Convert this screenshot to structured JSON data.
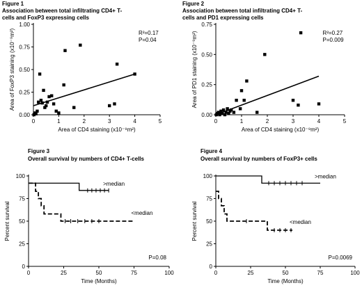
{
  "chart_data": [
    {
      "type": "scatter",
      "figure_label": "Figure 1",
      "title": "Association between total infiltrating CD4+ T-cells and FoxP3 expressing cells",
      "title_lines": [
        "Association between total infiltrating CD4+ T-",
        "cells and FoxP3 expressing cells"
      ],
      "xlabel": "Area of CD4 staining (x10⁻⁹m²)",
      "ylabel": "Area of FoxP3 staining (x10⁻⁹m²)",
      "xlim": [
        0,
        5
      ],
      "ylim": [
        0,
        1.0
      ],
      "xticks": [
        0,
        1,
        2,
        3,
        4,
        5
      ],
      "yticks": [
        0.0,
        0.25,
        0.5,
        0.75,
        1.0
      ],
      "ytick_labels": [
        "0.00",
        "0.25",
        "0.50",
        "0.75",
        "1.00"
      ],
      "grid": false,
      "annotations": [
        "R²=0.17",
        "P=0.04"
      ],
      "points": [
        {
          "x": 0.02,
          "y": 0.0
        },
        {
          "x": 0.05,
          "y": 0.02
        },
        {
          "x": 0.1,
          "y": 0.01
        },
        {
          "x": 0.15,
          "y": 0.04
        },
        {
          "x": 0.2,
          "y": 0.14
        },
        {
          "x": 0.25,
          "y": 0.45
        },
        {
          "x": 0.3,
          "y": 0.16
        },
        {
          "x": 0.35,
          "y": 0.13
        },
        {
          "x": 0.4,
          "y": 0.27
        },
        {
          "x": 0.45,
          "y": 0.08
        },
        {
          "x": 0.5,
          "y": 0.1
        },
        {
          "x": 0.55,
          "y": 0.14
        },
        {
          "x": 0.62,
          "y": 0.2
        },
        {
          "x": 0.72,
          "y": 0.21
        },
        {
          "x": 0.8,
          "y": 0.12
        },
        {
          "x": 0.9,
          "y": 0.04
        },
        {
          "x": 1.0,
          "y": 0.02
        },
        {
          "x": 1.2,
          "y": 0.33
        },
        {
          "x": 1.25,
          "y": 0.71
        },
        {
          "x": 1.6,
          "y": 0.08
        },
        {
          "x": 1.85,
          "y": 0.77
        },
        {
          "x": 3.0,
          "y": 0.1
        },
        {
          "x": 3.2,
          "y": 0.12
        },
        {
          "x": 3.3,
          "y": 0.56
        },
        {
          "x": 4.0,
          "y": 0.45
        }
      ],
      "regression_line": {
        "x": [
          0,
          4
        ],
        "y": [
          0.1,
          0.45
        ]
      }
    },
    {
      "type": "scatter",
      "figure_label": "Figure 2",
      "title": "Association between total infiltrating CD4+ T-cells and PD1 expressing cells",
      "title_lines": [
        "Association between total infiltrating CD4+ T-",
        "cells and PD1 expressing cells"
      ],
      "xlabel": "Area of CD4 staining (x10⁻⁹m²)",
      "ylabel": "Area of PD1 staining (x10⁻⁹m²)",
      "xlim": [
        0,
        5
      ],
      "ylim": [
        0,
        0.75
      ],
      "xticks": [
        0,
        1,
        2,
        3,
        4,
        5
      ],
      "yticks": [
        0.0,
        0.25,
        0.5,
        0.75
      ],
      "ytick_labels": [
        "0.00",
        "0.25",
        "0.50",
        "0.75"
      ],
      "grid": false,
      "annotations": [
        "R²=0.27",
        "P=0.009"
      ],
      "points": [
        {
          "x": 0.02,
          "y": 0.0
        },
        {
          "x": 0.05,
          "y": 0.01
        },
        {
          "x": 0.1,
          "y": 0.02
        },
        {
          "x": 0.15,
          "y": 0.0
        },
        {
          "x": 0.2,
          "y": 0.03
        },
        {
          "x": 0.25,
          "y": 0.01
        },
        {
          "x": 0.3,
          "y": 0.04
        },
        {
          "x": 0.35,
          "y": 0.0
        },
        {
          "x": 0.4,
          "y": 0.02
        },
        {
          "x": 0.45,
          "y": 0.05
        },
        {
          "x": 0.5,
          "y": 0.01
        },
        {
          "x": 0.55,
          "y": 0.03
        },
        {
          "x": 0.6,
          "y": 0.04
        },
        {
          "x": 0.7,
          "y": 0.02
        },
        {
          "x": 0.8,
          "y": 0.12
        },
        {
          "x": 0.95,
          "y": 0.05
        },
        {
          "x": 1.0,
          "y": 0.2
        },
        {
          "x": 1.1,
          "y": 0.12
        },
        {
          "x": 1.2,
          "y": 0.28
        },
        {
          "x": 1.6,
          "y": 0.02
        },
        {
          "x": 1.9,
          "y": 0.5
        },
        {
          "x": 3.0,
          "y": 0.12
        },
        {
          "x": 3.2,
          "y": 0.08
        },
        {
          "x": 3.3,
          "y": 0.68
        },
        {
          "x": 4.0,
          "y": 0.09
        }
      ],
      "regression_line": {
        "x": [
          0,
          4
        ],
        "y": [
          0.0,
          0.32
        ]
      }
    },
    {
      "type": "line",
      "subtype": "kaplan-meier",
      "figure_label": "Figure 3",
      "title": "Overall survival by numbers of CD4+ T-cells",
      "xlabel": "Time (Months)",
      "ylabel": "Percent survival",
      "xlim": [
        0,
        100
      ],
      "ylim": [
        0,
        100
      ],
      "xticks": [
        0,
        25,
        50,
        75,
        100
      ],
      "yticks": [
        0,
        25,
        50,
        75,
        100
      ],
      "grid": false,
      "annotations": [
        "P=0.08"
      ],
      "series": [
        {
          "name": ">median",
          "style": "solid",
          "x": [
            0,
            36,
            36,
            57
          ],
          "y": [
            92,
            92,
            84,
            84
          ],
          "censor_x": [
            42,
            45,
            48,
            51,
            54,
            57
          ],
          "censor_y": 84
        },
        {
          "name": "<median",
          "style": "dashed",
          "x": [
            0,
            5,
            5,
            7,
            7,
            9,
            9,
            11,
            11,
            23,
            23,
            75
          ],
          "y": [
            92,
            92,
            83,
            83,
            75,
            75,
            67,
            67,
            58,
            58,
            50,
            50
          ],
          "censor_x": [
            26,
            30,
            35,
            40,
            45,
            50
          ],
          "censor_y": 50
        }
      ]
    },
    {
      "type": "line",
      "subtype": "kaplan-meier",
      "figure_label": "Figure 4",
      "title": "Overall survival by numbers of FoxP3+ cells",
      "xlabel": "Time (Months)",
      "ylabel": "Percent survival",
      "xlim": [
        0,
        100
      ],
      "ylim": [
        0,
        100
      ],
      "xticks": [
        0,
        25,
        50,
        75,
        100
      ],
      "yticks": [
        0,
        25,
        50,
        75,
        100
      ],
      "grid": false,
      "annotations": [
        "P=0.0069"
      ],
      "series": [
        {
          "name": ">median",
          "style": "solid",
          "x": [
            0,
            33,
            33,
            75
          ],
          "y": [
            100,
            100,
            92,
            92
          ],
          "censor_x": [
            38,
            42,
            46,
            50,
            54,
            58,
            62
          ],
          "censor_y": 92
        },
        {
          "name": "<median",
          "style": "dashed",
          "x": [
            0,
            2,
            2,
            4,
            4,
            6,
            6,
            8,
            8,
            10,
            10,
            37,
            37,
            55
          ],
          "y": [
            83,
            83,
            75,
            75,
            67,
            67,
            58,
            58,
            50,
            50,
            50,
            50,
            40,
            40
          ],
          "censor_x": [
            22,
            42,
            46,
            50,
            54
          ],
          "censor_y_list": [
            50,
            40,
            40,
            40,
            40
          ]
        }
      ]
    }
  ]
}
